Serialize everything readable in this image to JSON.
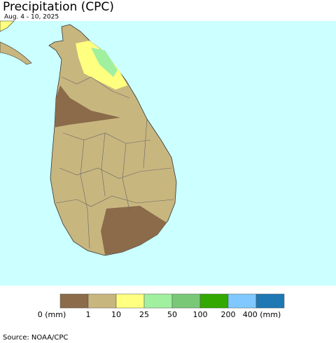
{
  "header": {
    "title": "Precipitation (CPC)",
    "subtitle": "Aug. 4 - 10, 2025"
  },
  "legend": {
    "items": [
      {
        "label": "0 (mm)",
        "color": "#8b6b4a"
      },
      {
        "label": "1",
        "color": "#c8b67f"
      },
      {
        "label": "10",
        "color": "#ffff80"
      },
      {
        "label": "25",
        "color": "#a0f0a0"
      },
      {
        "label": "50",
        "color": "#78c878"
      },
      {
        "label": "100",
        "color": "#32a800"
      },
      {
        "label": "200",
        "color": "#80c8ff"
      },
      {
        "label": "400 (mm)",
        "color": "#1e78b4"
      }
    ]
  },
  "footer": {
    "source": "Source: NOAA/CPC"
  }
}
